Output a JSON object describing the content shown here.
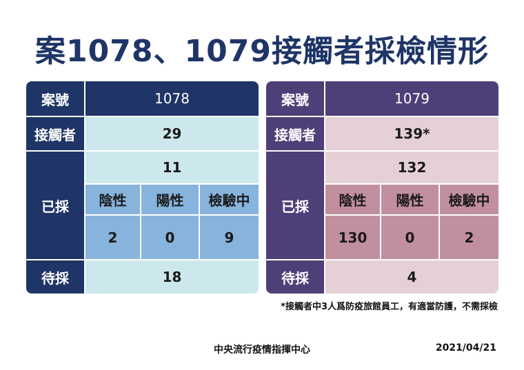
{
  "title": "案1078、1079接觸者採檢情形",
  "labels": {
    "case_no": "案號",
    "contacts": "接觸者",
    "tested": "已採",
    "negative": "陰性",
    "positive": "陽性",
    "pending_test": "檢驗中",
    "awaiting": "待採"
  },
  "cases": [
    {
      "case_no": "1078",
      "contacts": "29",
      "tested": "11",
      "negative": "2",
      "positive": "0",
      "pending_test": "9",
      "awaiting": "18"
    },
    {
      "case_no": "1079",
      "contacts": "139*",
      "tested": "132",
      "negative": "130",
      "positive": "0",
      "pending_test": "2",
      "awaiting": "4"
    }
  ],
  "footnote": "*接觸者中3人爲防疫旅館員工，有適當防護，不需採檢",
  "footer": {
    "org": "中央流行疫情指揮中心",
    "date": "2021/04/21"
  }
}
